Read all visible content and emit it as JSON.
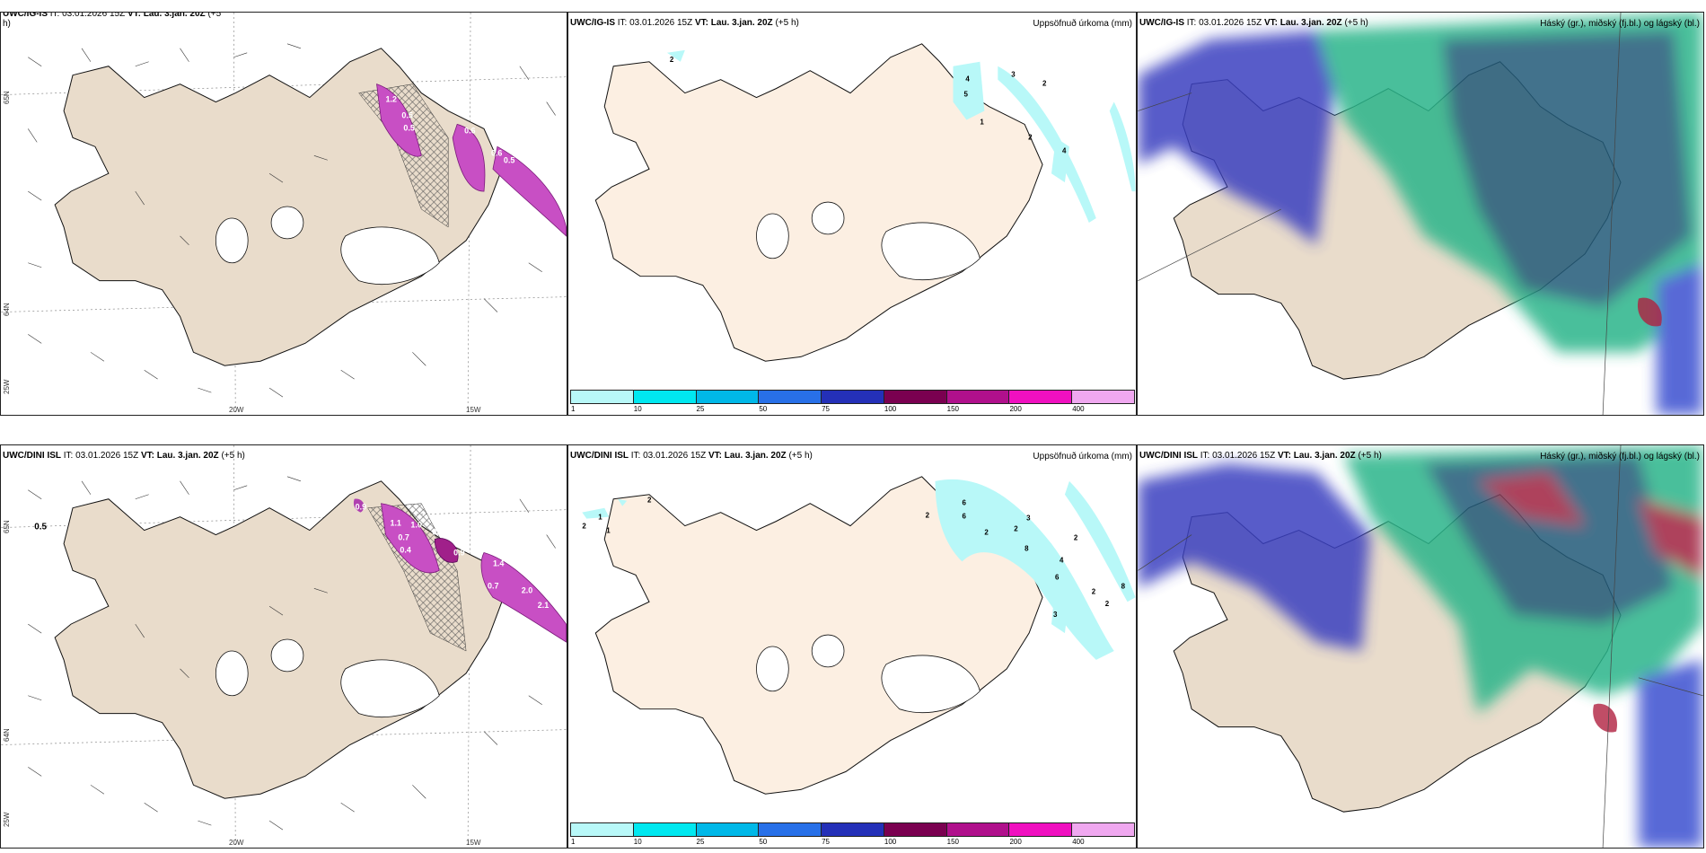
{
  "panels": {
    "p1": {
      "model": "UWC/IG-IS",
      "it_label": "IT:",
      "it": "03.01.2026 15Z",
      "vt_label": "VT:",
      "vt": "Lau. 3.jan. 20Z",
      "lead": "(+5",
      "lead2": "h)"
    },
    "p2": {
      "model": "UWC/IG-IS",
      "it_label": "IT:",
      "it": "03.01.2026 15Z",
      "vt_label": "VT:",
      "vt": "Lau. 3.jan. 20Z",
      "lead": "(+5 h)",
      "right": "Uppsöfnuð úrkoma (mm)",
      "labels": [
        "2",
        "4",
        "5",
        "1",
        "3",
        "2",
        "2",
        "4"
      ]
    },
    "p3": {
      "model": "UWC/IG-IS",
      "it_label": "IT:",
      "it": "03.01.2026 15Z",
      "vt_label": "VT:",
      "vt": "Lau. 3.jan. 20Z",
      "lead": "(+5 h)",
      "right": "Háský (gr.), miðský (fj.bl.) og lágský (bl.)"
    },
    "p4": {
      "model": "UWC/DINI ISL",
      "it_label": "IT:",
      "it": "03.01.2026 15Z",
      "vt_label": "VT:",
      "vt": "Lau. 3.jan. 20Z",
      "lead": "(+5 h)",
      "marker": "0.5"
    },
    "p5": {
      "model": "UWC/DINI ISL",
      "it_label": "IT:",
      "it": "03.01.2026 15Z",
      "vt_label": "VT:",
      "vt": "Lau. 3.jan. 20Z",
      "lead": "(+5 h)",
      "right": "Uppsöfnuð úrkoma (mm)",
      "labels": [
        "2",
        "1",
        "2",
        "1",
        "2",
        "6",
        "6",
        "2",
        "2",
        "3",
        "8",
        "2",
        "4",
        "6",
        "3",
        "2",
        "2",
        "8"
      ]
    },
    "p6": {
      "model": "UWC/DINI ISL",
      "it_label": "IT:",
      "it": "03.01.2026 15Z",
      "vt_label": "VT:",
      "vt": "Lau. 3.jan. 20Z",
      "lead": "(+5 h)",
      "right": "Háský (gr.), miðský (fj.bl.) og lágský (bl.)"
    }
  },
  "axis": {
    "lon1": "20W",
    "lon2": "15W",
    "lat1": "65N",
    "lat2": "64N",
    "lon0": "25W"
  },
  "p1_values": [
    "1.2",
    "0.5",
    "0.5",
    "0.6",
    "0.6",
    "0.5"
  ],
  "p4_values": [
    "0.9",
    "1.1",
    "1.0",
    "0.7",
    "0.4",
    "0.4",
    "0.9",
    "1.4",
    "2.0",
    "0.7",
    "2.1"
  ],
  "colorbar": {
    "labels": [
      "1",
      "10",
      "25",
      "50",
      "75",
      "100",
      "150",
      "200",
      "400"
    ],
    "colors": [
      "#b8f8f8",
      "#00e8f0",
      "#00b8e8",
      "#2870e8",
      "#2430b8",
      "#7a0050",
      "#b0108c",
      "#f010c0",
      "#f0a8f0"
    ]
  },
  "colors": {
    "land": "#e9dccb",
    "land_light": "#fcefe2",
    "coast": "#111111"
  }
}
